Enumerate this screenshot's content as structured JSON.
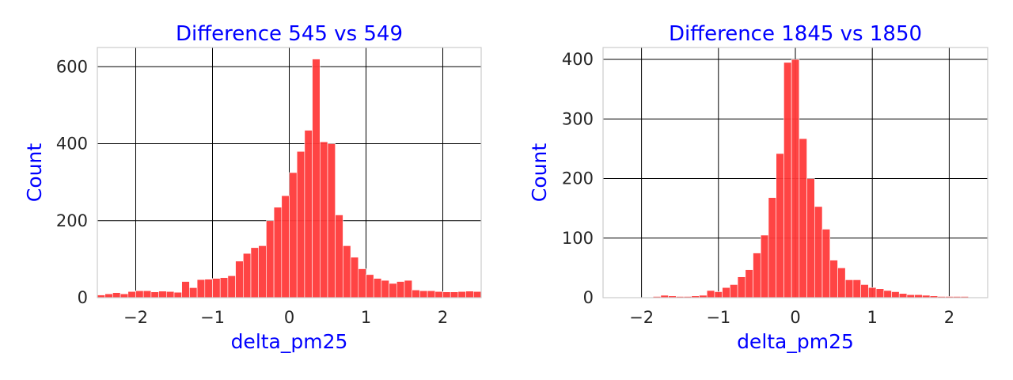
{
  "colors": {
    "bar": "#ff3a3a",
    "label": "#0000ff",
    "grid": "#000000",
    "frame": "#cccccc",
    "tick": "#262626"
  },
  "chart_data": [
    {
      "type": "bar",
      "title": "Difference 545 vs 549",
      "xlabel": "delta_pm25",
      "ylabel": "Count",
      "xlim": [
        -2.5,
        2.5
      ],
      "ylim": [
        0,
        650
      ],
      "xticks": [
        -2,
        -1,
        0,
        1,
        2
      ],
      "xtick_labels": [
        "−2",
        "−1",
        "0",
        "1",
        "2"
      ],
      "yticks": [
        0,
        200,
        400,
        600
      ],
      "ytick_labels": [
        "0",
        "200",
        "400",
        "600"
      ],
      "grid": true,
      "bin_start": -2.5,
      "bin_width": 0.1,
      "values": [
        7,
        10,
        13,
        10,
        16,
        18,
        18,
        15,
        17,
        16,
        14,
        42,
        26,
        47,
        48,
        50,
        52,
        57,
        95,
        115,
        130,
        135,
        200,
        235,
        265,
        325,
        380,
        435,
        620,
        405,
        400,
        215,
        135,
        105,
        75,
        60,
        50,
        45,
        37,
        42,
        45,
        20,
        18,
        18,
        16,
        15,
        15,
        16,
        17,
        16
      ]
    },
    {
      "type": "bar",
      "title": "Difference 1845 vs 1850",
      "xlabel": "delta_pm25",
      "ylabel": "Count",
      "xlim": [
        -2.5,
        2.5
      ],
      "ylim": [
        0,
        420
      ],
      "xticks": [
        -2,
        -1,
        0,
        1,
        2
      ],
      "xtick_labels": [
        "−2",
        "−1",
        "0",
        "1",
        "2"
      ],
      "yticks": [
        0,
        100,
        200,
        300,
        400
      ],
      "ytick_labels": [
        "0",
        "100",
        "200",
        "300",
        "400"
      ],
      "grid": true,
      "bin_start": -1.85,
      "bin_width": 0.1,
      "values": [
        2,
        4,
        3,
        2,
        2,
        3,
        4,
        12,
        10,
        17,
        22,
        35,
        47,
        75,
        105,
        168,
        242,
        395,
        400,
        267,
        200,
        153,
        115,
        63,
        50,
        30,
        30,
        22,
        17,
        15,
        12,
        10,
        7,
        5,
        5,
        4,
        3,
        2,
        2,
        2,
        2
      ]
    }
  ]
}
